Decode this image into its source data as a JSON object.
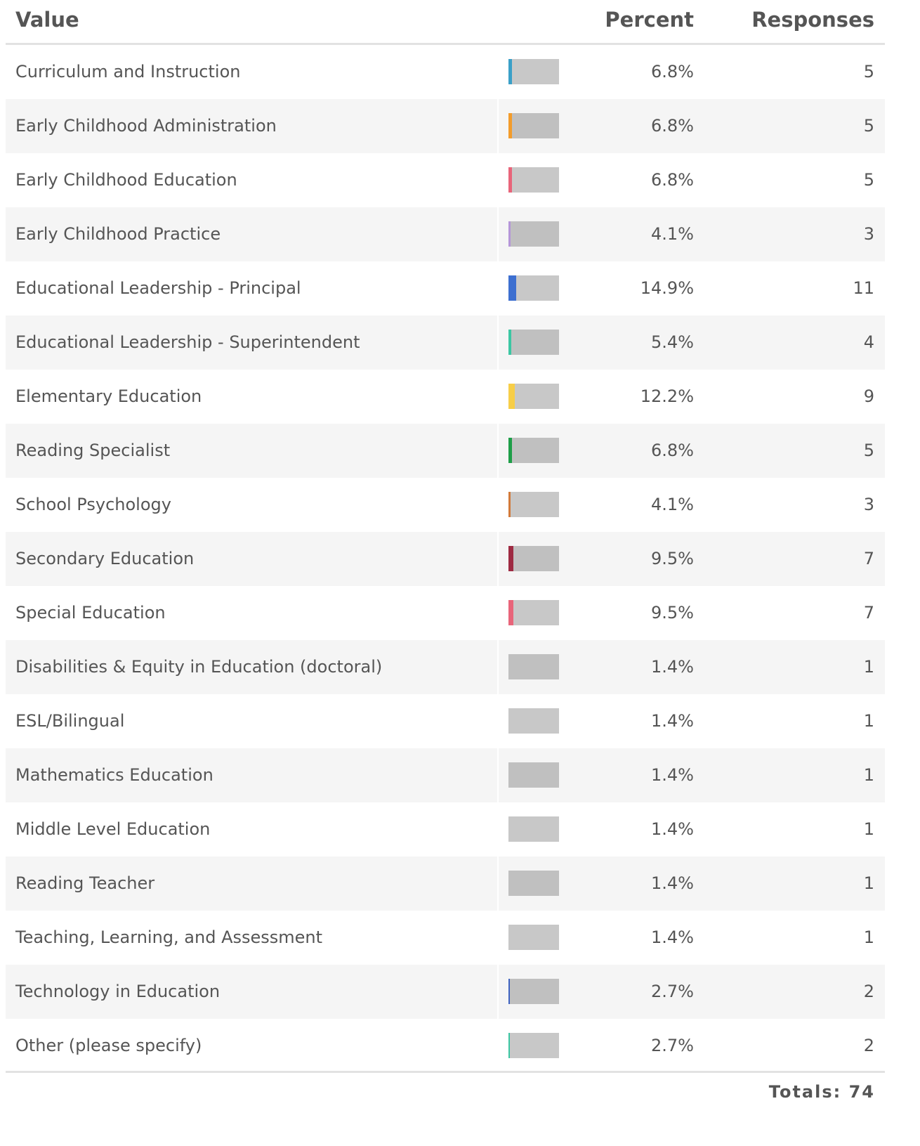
{
  "table": {
    "headers": [
      "Value",
      "Percent",
      "Responses"
    ],
    "rows": [
      {
        "value": "Curriculum and Instruction",
        "percent": {
          "value": 6.8,
          "label": "6.8%"
        },
        "responses": 5,
        "color": "#3aa0c8"
      },
      {
        "value": "Early Childhood Administration",
        "percent": {
          "value": 6.8,
          "label": "6.8%"
        },
        "responses": 5,
        "color": "#f39c2b"
      },
      {
        "value": "Early Childhood Education",
        "percent": {
          "value": 6.8,
          "label": "6.8%"
        },
        "responses": 5,
        "color": "#e8657a"
      },
      {
        "value": "Early Childhood Practice",
        "percent": {
          "value": 4.1,
          "label": "4.1%"
        },
        "responses": 3,
        "color": "#b596d8"
      },
      {
        "value": "Educational Leadership - Principal",
        "percent": {
          "value": 14.9,
          "label": "14.9%"
        },
        "responses": 11,
        "color": "#3d6fd0"
      },
      {
        "value": "Educational Leadership - Superintendent",
        "percent": {
          "value": 5.4,
          "label": "5.4%"
        },
        "responses": 4,
        "color": "#3cc7a3"
      },
      {
        "value": "Elementary Education",
        "percent": {
          "value": 12.2,
          "label": "12.2%"
        },
        "responses": 9,
        "color": "#f7ce48"
      },
      {
        "value": "Reading Specialist",
        "percent": {
          "value": 6.8,
          "label": "6.8%"
        },
        "responses": 5,
        "color": "#1e9e48"
      },
      {
        "value": "School Psychology",
        "percent": {
          "value": 4.1,
          "label": "4.1%"
        },
        "responses": 3,
        "color": "#d27a3a"
      },
      {
        "value": "Secondary Education",
        "percent": {
          "value": 9.5,
          "label": "9.5%"
        },
        "responses": 7,
        "color": "#9e2a42"
      },
      {
        "value": "Special Education",
        "percent": {
          "value": 9.5,
          "label": "9.5%"
        },
        "responses": 7,
        "color": "#e8657a"
      },
      {
        "value": "Disabilities & Equity in Education (doctoral)",
        "percent": {
          "value": 1.4,
          "label": "1.4%"
        },
        "responses": 1
      },
      {
        "value": "ESL/Bilingual",
        "percent": {
          "value": 1.4,
          "label": "1.4%"
        },
        "responses": 1
      },
      {
        "value": "Mathematics Education",
        "percent": {
          "value": 1.4,
          "label": "1.4%"
        },
        "responses": 1
      },
      {
        "value": "Middle Level Education",
        "percent": {
          "value": 1.4,
          "label": "1.4%"
        },
        "responses": 1
      },
      {
        "value": "Reading Teacher",
        "percent": {
          "value": 1.4,
          "label": "1.4%"
        },
        "responses": 1
      },
      {
        "value": "Teaching, Learning, and Assessment",
        "percent": {
          "value": 1.4,
          "label": "1.4%"
        },
        "responses": 1
      },
      {
        "value": "Technology in Education",
        "percent": {
          "value": 2.7,
          "label": "2.7%"
        },
        "responses": 2,
        "color": "#3f63c2"
      },
      {
        "value": "Other (please specify)",
        "percent": {
          "value": 2.7,
          "label": "2.7%"
        },
        "responses": 2,
        "color": "#3cc7a3"
      }
    ],
    "totals": {
      "label": "Totals:",
      "value": 74
    }
  }
}
